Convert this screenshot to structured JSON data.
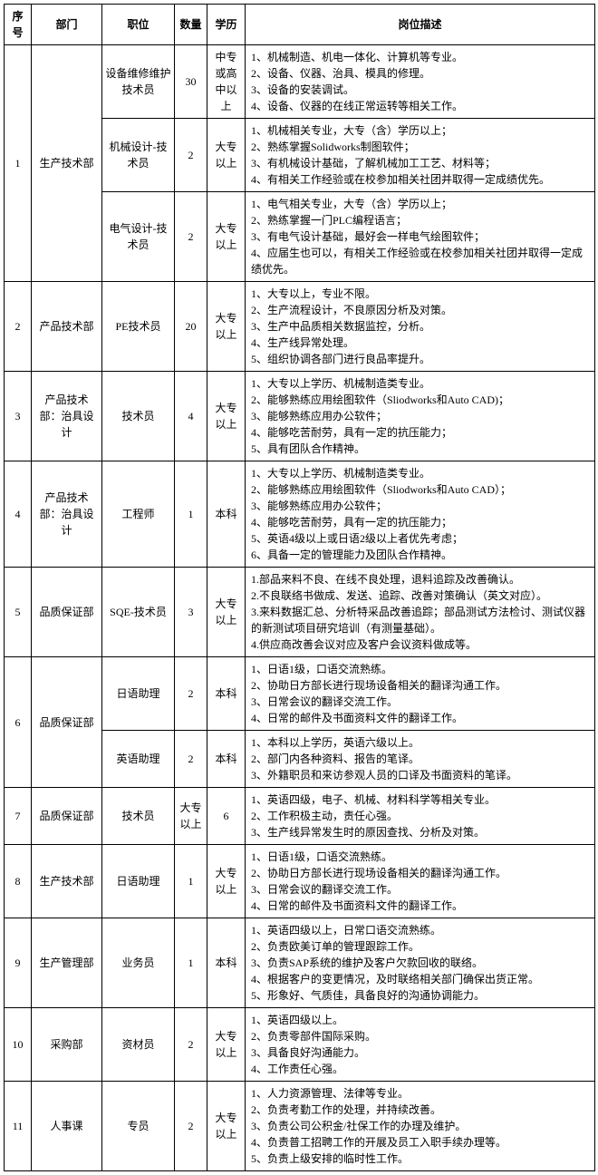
{
  "headers": {
    "seq": "序号",
    "dept": "部门",
    "position": "职位",
    "qty": "数量",
    "edu": "学历",
    "desc": "岗位描述"
  },
  "rows": [
    {
      "seq": "1",
      "seq_rowspan": 3,
      "dept": "生产技术部",
      "dept_rowspan": 3,
      "position": "设备维修维护技术员",
      "qty": "30",
      "edu": "中专或高中以上",
      "desc": "1、机械制造、机电一体化、计算机等专业。\n2、设备、仪器、治具、模具的修理。\n3、设备的安装调试。\n4、设备、仪器的在线正常运转等相关工作。"
    },
    {
      "position": "机械设计-技术员",
      "qty": "2",
      "edu": "大专以上",
      "desc": "1、机械相关专业，大专（含）学历以上；\n2、熟练掌握Solidworks制图软件；\n3、有机械设计基础，了解机械加工工艺、材料等；\n4、有相关工作经验或在校参加相关社团并取得一定成绩优先。"
    },
    {
      "position": "电气设计-技术员",
      "qty": "2",
      "edu": "大专以上",
      "desc": "1、电气相关专业，大专（含）学历以上；\n2、熟练掌握一门PLC编程语言；\n3、有电气设计基础，最好会一样电气绘图软件；\n4、应届生也可以，有相关工作经验或在校参加相关社团并取得一定成绩优先。"
    },
    {
      "seq": "2",
      "dept": "产品技术部",
      "position": "PE技术员",
      "qty": "20",
      "edu": "大专以上",
      "desc": "1、大专以上，专业不限。\n2、生产流程设计，不良原因分析及对策。\n3、生产中品质相关数据监控，分析。\n4、生产线异常处理。\n5、组织协调各部门进行良品率提升。"
    },
    {
      "seq": "3",
      "dept": "产品技术部：治具设计",
      "position": "技术员",
      "qty": "4",
      "edu": "大专以上",
      "desc": "1、大专以上学历、机械制造类专业。\n2、能够熟练应用绘图软件（Sliodworks和Auto CAD)；\n3、能够熟练应用办公软件；\n4、能够吃苦耐劳，具有一定的抗压能力；\n5、具有团队合作精神。"
    },
    {
      "seq": "4",
      "dept": "产品技术部：治具设计",
      "position": "工程师",
      "qty": "1",
      "edu": "本科",
      "desc": "1、大专以上学历、机械制造类专业。\n2、能够熟练应用绘图软件（Sliodworks和Auto CAD）；\n3、能够熟练应用办公软件；\n4、能够吃苦耐劳，具有一定的抗压能力；\n5、英语4级以上或日语2级以上者优先考虑；\n6、具备一定的管理能力及团队合作精神。"
    },
    {
      "seq": "5",
      "dept": "品质保证部",
      "position": "SQE-技术员",
      "qty": "3",
      "edu": "大专以上",
      "desc": "1.部品来料不良、在线不良处理，退料追踪及改善确认。\n2.不良联络书做成、发送、追踪、改善对策确认（英文对应）。\n3.来料数据汇总、分析特采品改善追踪；部品测试方法检讨、测试仪器的新测试项目研究培训（有测量基础）。\n4.供应商改善会议对应及客户会议资料做成等。"
    },
    {
      "seq": "6",
      "seq_rowspan": 2,
      "dept": "品质保证部",
      "dept_rowspan": 2,
      "position": "日语助理",
      "qty": "2",
      "edu": "本科",
      "desc": "1、日语1级，口语交流熟练。\n2、协助日方部长进行现场设备相关的翻译沟通工作。\n3、日常会议的翻译交流工作。\n4、日常的邮件及书面资料文件的翻译工作。"
    },
    {
      "position": "英语助理",
      "qty": "2",
      "edu": "本科",
      "desc": "1、本科以上学历，英语六级以上。\n2、部门内各种资料、报告的笔译。\n3、外籍职员和来访参观人员的口译及书面资料的笔译。"
    },
    {
      "seq": "7",
      "dept": "品质保证部",
      "position": "技术员",
      "qty": "大专以上",
      "edu": "6",
      "desc": "1、英语四级，电子、机械、材料科学等相关专业。\n2、工作积极主动，责任心强。\n3、生产线异常发生时的原因查找、分析及对策。"
    },
    {
      "seq": "8",
      "dept": "生产技术部",
      "position": "日语助理",
      "qty": "1",
      "edu": "大专以上",
      "desc": "1、日语1级，口语交流熟练。\n2、协助日方部长进行现场设备相关的翻译沟通工作。\n3、日常会议的翻译交流工作。\n4、日常的邮件及书面资料文件的翻译工作。"
    },
    {
      "seq": "9",
      "dept": "生产管理部",
      "position": "业务员",
      "qty": "1",
      "edu": "本科",
      "desc": "1、英语四级以上，日常口语交流熟练。\n2、负责欧美订单的管理跟踪工作。\n3、负责SAP系统的维护及客户欠款回收的联络。\n4、根据客户的变更情况，及时联络相关部门确保出货正常。\n5、形象好、气质佳，具备良好的沟通协调能力。"
    },
    {
      "seq": "10",
      "dept": "采购部",
      "position": "资材员",
      "qty": "2",
      "edu": "大专以上",
      "desc": "1、英语四级以上。\n2、负责零部件国际采购。\n3、具备良好沟通能力。\n4、工作责任心强。"
    },
    {
      "seq": "11",
      "dept": "人事课",
      "position": "专员",
      "qty": "2",
      "edu": "大专以上",
      "desc": "1、人力资源管理、法律等专业。\n2、负责考勤工作的处理，并持续改善。\n3、负责公司公积金/社保工作的办理及维护。\n4、负责普工招聘工作的开展及员工入职手续办理等。\n5、负责上级安排的临时性工作。"
    }
  ]
}
